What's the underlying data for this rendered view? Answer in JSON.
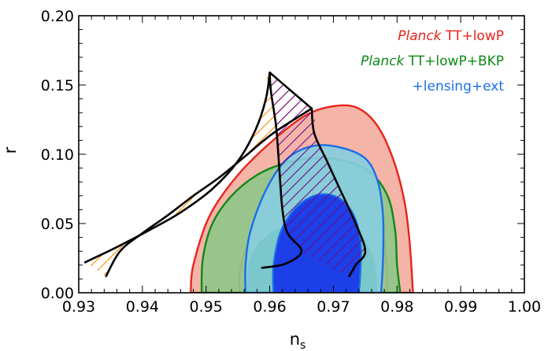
{
  "chart_data": {
    "type": "area",
    "xlabel": "n",
    "xlabel_sub": "s",
    "ylabel": "r",
    "xlim": [
      0.93,
      1.0
    ],
    "ylim": [
      0.0,
      0.2
    ],
    "x_ticks": [
      0.93,
      0.94,
      0.95,
      0.96,
      0.97,
      0.98,
      0.99,
      1.0
    ],
    "x_tick_labels": [
      "0.93",
      "0.94",
      "0.95",
      "0.96",
      "0.97",
      "0.98",
      "0.99",
      "1.00"
    ],
    "y_ticks": [
      0.0,
      0.05,
      0.1,
      0.15,
      0.2
    ],
    "y_tick_labels": [
      "0.00",
      "0.05",
      "0.10",
      "0.15",
      "0.20"
    ],
    "grid": false,
    "legend_position": "top-right",
    "legend": [
      {
        "prefix": "Planck",
        "rest": " TT+lowP",
        "color": "#e8241b"
      },
      {
        "prefix": "Planck",
        "rest": " TT+lowP+BKP",
        "color": "#0e8a16"
      },
      {
        "prefix": "",
        "rest": "+lensing+ext",
        "color": "#1a6ee6"
      }
    ],
    "series": [
      {
        "color": "#e8241b",
        "fill_outer": "#f5b4a8",
        "fill_inner": "#f5b4a8",
        "outer": [
          [
            0.9476,
            0.0
          ],
          [
            0.948,
            0.02
          ],
          [
            0.9505,
            0.055
          ],
          [
            0.955,
            0.085
          ],
          [
            0.961,
            0.112
          ],
          [
            0.966,
            0.129
          ],
          [
            0.9705,
            0.135
          ],
          [
            0.974,
            0.133
          ],
          [
            0.977,
            0.12
          ],
          [
            0.9795,
            0.095
          ],
          [
            0.9812,
            0.065
          ],
          [
            0.982,
            0.035
          ],
          [
            0.9825,
            0.0
          ]
        ],
        "inner": [
          [
            0.9552,
            0.0
          ],
          [
            0.9555,
            0.02
          ],
          [
            0.9575,
            0.045
          ],
          [
            0.961,
            0.068
          ],
          [
            0.9655,
            0.087
          ],
          [
            0.9702,
            0.092
          ],
          [
            0.9742,
            0.083
          ],
          [
            0.977,
            0.06
          ],
          [
            0.9782,
            0.03
          ],
          [
            0.9785,
            0.0
          ]
        ]
      },
      {
        "color": "#0e8a16",
        "fill_outer": "#8fc78a",
        "fill_inner": "#0e8a16",
        "outer": [
          [
            0.9493,
            0.0
          ],
          [
            0.9495,
            0.025
          ],
          [
            0.951,
            0.05
          ],
          [
            0.954,
            0.07
          ],
          [
            0.958,
            0.085
          ],
          [
            0.962,
            0.093
          ],
          [
            0.966,
            0.097
          ],
          [
            0.971,
            0.096
          ],
          [
            0.9755,
            0.088
          ],
          [
            0.9785,
            0.07
          ],
          [
            0.9797,
            0.045
          ],
          [
            0.98,
            0.02
          ],
          [
            0.9805,
            0.0
          ]
        ],
        "inner": [
          [
            0.9565,
            0.0
          ],
          [
            0.9568,
            0.02
          ],
          [
            0.9585,
            0.036
          ],
          [
            0.962,
            0.047
          ],
          [
            0.9665,
            0.052
          ],
          [
            0.971,
            0.05
          ],
          [
            0.9745,
            0.04
          ],
          [
            0.9763,
            0.022
          ],
          [
            0.9768,
            0.0
          ]
        ]
      },
      {
        "color": "#1a6ee6",
        "fill_outer": "#86cde0",
        "fill_inner": "#1c3fe8",
        "outer": [
          [
            0.9562,
            0.0
          ],
          [
            0.9562,
            0.02
          ],
          [
            0.957,
            0.045
          ],
          [
            0.9595,
            0.075
          ],
          [
            0.9628,
            0.097
          ],
          [
            0.9668,
            0.106
          ],
          [
            0.971,
            0.105
          ],
          [
            0.975,
            0.097
          ],
          [
            0.977,
            0.08
          ],
          [
            0.9778,
            0.055
          ],
          [
            0.9778,
            0.025
          ],
          [
            0.9775,
            0.0
          ]
        ],
        "inner": [
          [
            0.9606,
            0.0
          ],
          [
            0.9606,
            0.02
          ],
          [
            0.9618,
            0.045
          ],
          [
            0.9645,
            0.063
          ],
          [
            0.9678,
            0.071
          ],
          [
            0.971,
            0.068
          ],
          [
            0.9733,
            0.055
          ],
          [
            0.9743,
            0.035
          ],
          [
            0.9742,
            0.012
          ],
          [
            0.974,
            0.0
          ]
        ]
      }
    ],
    "hatched_regions": [
      {
        "color": "#ff8c00",
        "boundary": [
          [
            0.931,
            0.022
          ],
          [
            0.936,
            0.033
          ],
          [
            0.941,
            0.045
          ],
          [
            0.946,
            0.058
          ],
          [
            0.951,
            0.075
          ],
          [
            0.955,
            0.095
          ],
          [
            0.9578,
            0.118
          ],
          [
            0.9594,
            0.14
          ],
          [
            0.96,
            0.159
          ],
          [
            0.9645,
            0.134
          ],
          [
            0.9605,
            0.115
          ],
          [
            0.956,
            0.098
          ],
          [
            0.952,
            0.083
          ],
          [
            0.948,
            0.07
          ],
          [
            0.944,
            0.056
          ],
          [
            0.94,
            0.043
          ],
          [
            0.9365,
            0.03
          ],
          [
            0.9343,
            0.012
          ]
        ]
      },
      {
        "color": "#6a0d91",
        "boundary": [
          [
            0.96,
            0.159
          ],
          [
            0.9666,
            0.133
          ],
          [
            0.967,
            0.115
          ],
          [
            0.969,
            0.095
          ],
          [
            0.971,
            0.075
          ],
          [
            0.9735,
            0.05
          ],
          [
            0.975,
            0.03
          ],
          [
            0.9735,
            0.02
          ],
          [
            0.9725,
            0.012
          ],
          [
            0.965,
            0.03
          ],
          [
            0.9628,
            0.043
          ],
          [
            0.962,
            0.06
          ],
          [
            0.9615,
            0.09
          ],
          [
            0.961,
            0.12
          ],
          [
            0.9602,
            0.145
          ]
        ]
      }
    ],
    "model_curves": [
      [
        [
          0.96,
          0.159
        ],
        [
          0.9594,
          0.14
        ],
        [
          0.9578,
          0.118
        ],
        [
          0.955,
          0.095
        ],
        [
          0.951,
          0.075
        ],
        [
          0.946,
          0.058
        ],
        [
          0.941,
          0.045
        ],
        [
          0.936,
          0.033
        ],
        [
          0.931,
          0.022
        ]
      ],
      [
        [
          0.96,
          0.159
        ],
        [
          0.9666,
          0.133
        ]
      ],
      [
        [
          0.9666,
          0.133
        ],
        [
          0.9605,
          0.115
        ],
        [
          0.956,
          0.098
        ],
        [
          0.952,
          0.083
        ],
        [
          0.948,
          0.07
        ],
        [
          0.944,
          0.056
        ],
        [
          0.94,
          0.043
        ],
        [
          0.9365,
          0.03
        ],
        [
          0.9343,
          0.012
        ]
      ],
      [
        [
          0.96,
          0.159
        ],
        [
          0.9602,
          0.145
        ],
        [
          0.961,
          0.12
        ],
        [
          0.9615,
          0.09
        ],
        [
          0.962,
          0.06
        ],
        [
          0.9628,
          0.043
        ],
        [
          0.965,
          0.03
        ],
        [
          0.9625,
          0.021
        ],
        [
          0.9588,
          0.018
        ]
      ],
      [
        [
          0.9666,
          0.133
        ],
        [
          0.967,
          0.115
        ],
        [
          0.969,
          0.095
        ],
        [
          0.971,
          0.075
        ],
        [
          0.9735,
          0.05
        ],
        [
          0.975,
          0.03
        ],
        [
          0.9735,
          0.02
        ],
        [
          0.9725,
          0.012
        ]
      ]
    ]
  }
}
